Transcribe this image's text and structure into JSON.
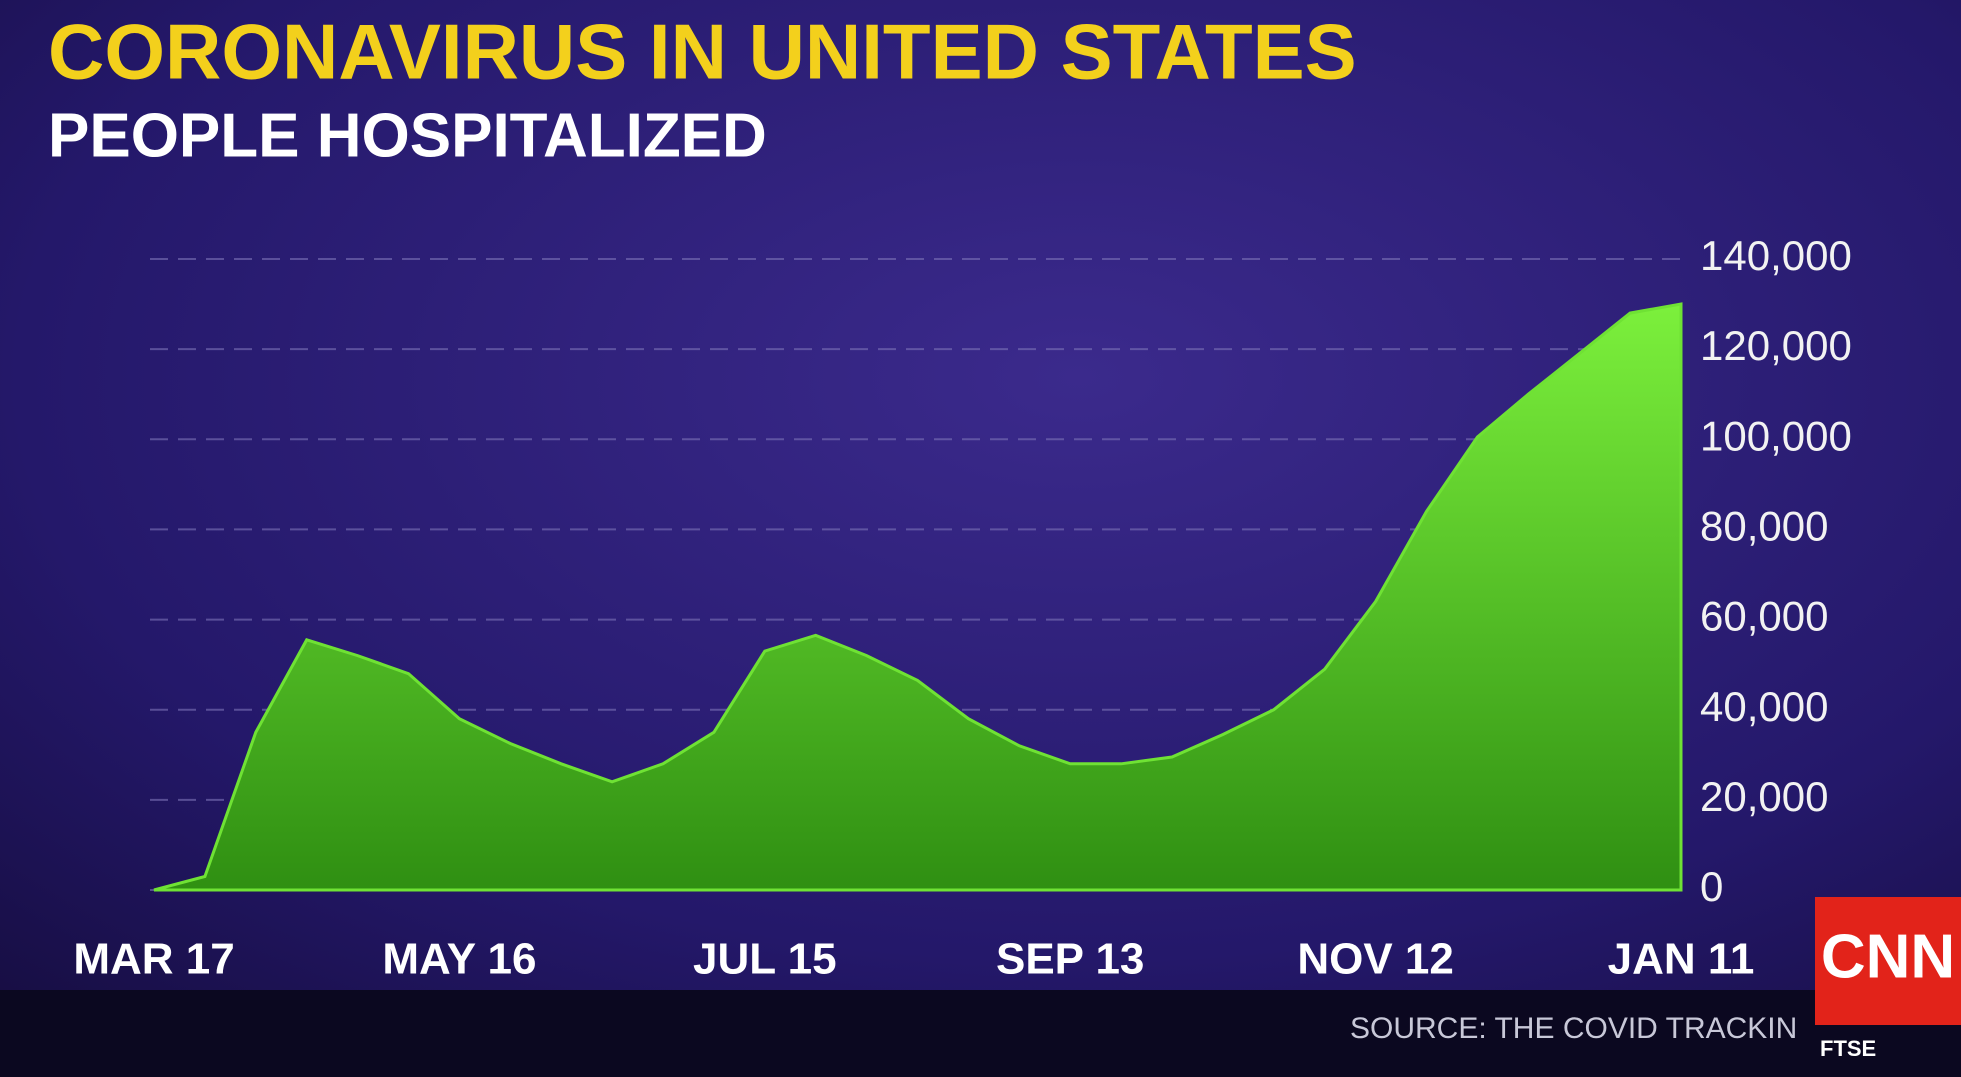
{
  "chart_data": {
    "type": "area",
    "title": "CORONAVIRUS IN UNITED STATES",
    "subtitle": "PEOPLE HOSPITALIZED",
    "source": "SOURCE: THE COVID TRACKIN",
    "logo": "CNN",
    "ticker": "FTSE",
    "categories": [
      "MAR 17",
      null,
      null,
      null,
      null,
      null,
      "MAY 16",
      null,
      null,
      null,
      null,
      null,
      "JUL 15",
      null,
      null,
      null,
      null,
      null,
      "SEP 13",
      null,
      null,
      null,
      null,
      null,
      "NOV 12",
      null,
      null,
      null,
      null,
      null,
      "JAN 11"
    ],
    "series": [
      {
        "name": "People hospitalized",
        "color": "#6fe234",
        "values": [
          0,
          3000,
          35000,
          55500,
          52000,
          48000,
          38000,
          32500,
          28000,
          24000,
          28000,
          35000,
          53000,
          56500,
          52000,
          46500,
          38000,
          32000,
          28000,
          28000,
          29500,
          34500,
          40000,
          49000,
          64000,
          84000,
          100500,
          110000,
          119000,
          128000,
          130000
        ]
      }
    ],
    "ylim": [
      0,
      140000
    ],
    "yticks": [
      0,
      {
        "value": 20000,
        "label": "20,000"
      },
      {
        "value": 40000,
        "label": "40,000"
      },
      {
        "value": 60000,
        "label": "60,000"
      },
      {
        "value": 80000,
        "label": "80,000"
      },
      {
        "value": 100000,
        "label": "100,000"
      },
      {
        "value": 120000,
        "label": "120,000"
      },
      {
        "value": 140000,
        "label": "140,000"
      }
    ],
    "grid": true
  }
}
